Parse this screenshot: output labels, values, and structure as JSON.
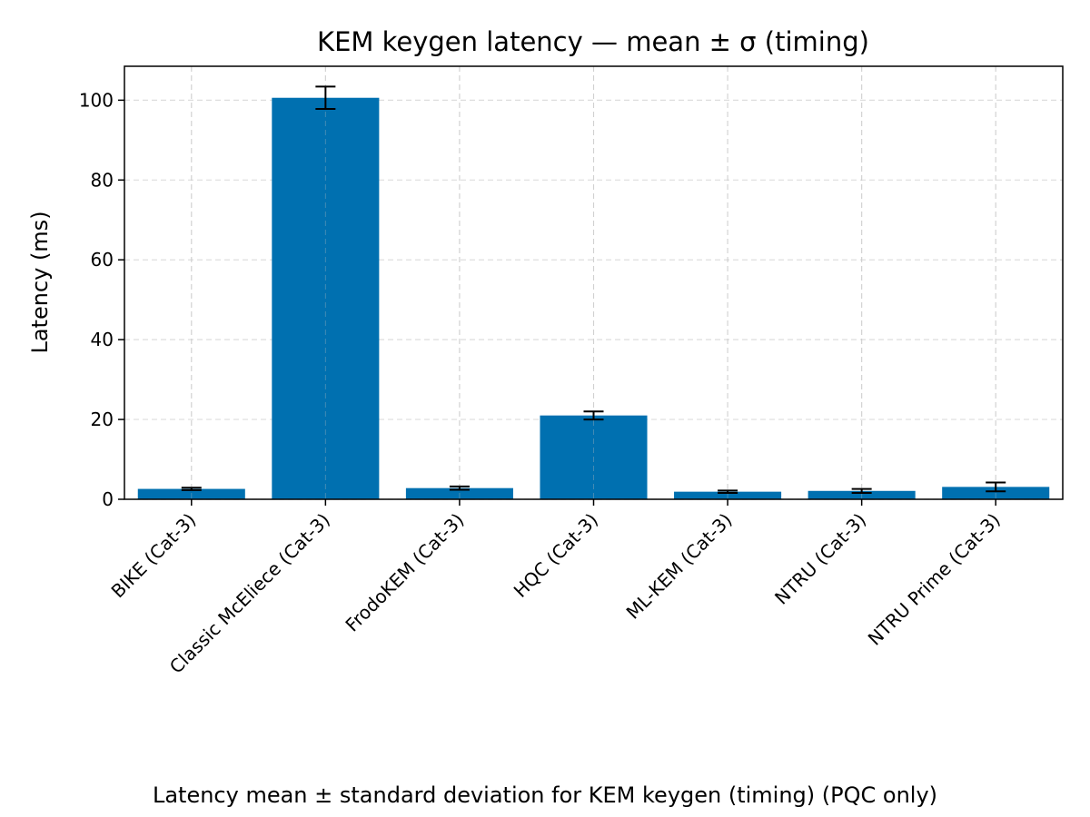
{
  "caption": "Latency mean ± standard deviation for KEM keygen (timing) (PQC only)",
  "chart_data": {
    "type": "bar",
    "title": "KEM keygen latency — mean ± σ (timing)",
    "xlabel": "",
    "ylabel": "Latency (ms)",
    "categories": [
      "BIKE (Cat-3)",
      "Classic McEliece (Cat-3)",
      "FrodoKEM (Cat-3)",
      "HQC (Cat-3)",
      "ML-KEM (Cat-3)",
      "NTRU (Cat-3)",
      "NTRU Prime (Cat-3)"
    ],
    "values": [
      2.6,
      100.6,
      2.8,
      21.0,
      1.9,
      2.1,
      3.1
    ],
    "errors": [
      0.3,
      2.8,
      0.4,
      1.0,
      0.3,
      0.5,
      1.1
    ],
    "ylim": [
      0,
      108.5
    ],
    "yticks": [
      0,
      20,
      40,
      60,
      80,
      100
    ],
    "grid": true,
    "bar_color": "#0070b0",
    "error_color": "#000000"
  }
}
